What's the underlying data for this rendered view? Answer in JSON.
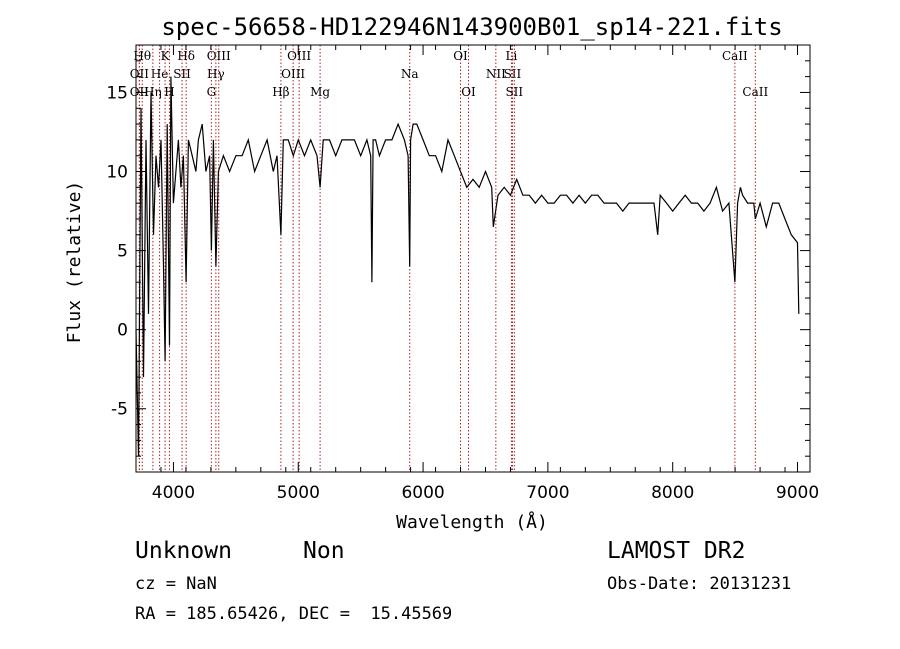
{
  "chart_data": {
    "type": "line",
    "title": "spec-56658-HD122946N143900B01_sp14-221.fits",
    "xlabel": "Wavelength (Å)",
    "ylabel": "Flux (relative)",
    "xlim": [
      3700,
      9100
    ],
    "ylim": [
      -9,
      18
    ],
    "xticks": [
      4000,
      5000,
      6000,
      7000,
      8000,
      9000
    ],
    "yticks": [
      -5,
      0,
      5,
      10,
      15
    ],
    "series": [
      {
        "x": [
          3700,
          3720,
          3740,
          3760,
          3780,
          3800,
          3820,
          3840,
          3860,
          3880,
          3900,
          3920,
          3933,
          3950,
          3968,
          3980,
          4000,
          4020,
          4040,
          4060,
          4080,
          4101,
          4120,
          4150,
          4180,
          4200,
          4230,
          4260,
          4290,
          4304,
          4320,
          4340,
          4360,
          4400,
          4450,
          4500,
          4550,
          4600,
          4650,
          4700,
          4750,
          4800,
          4830,
          4861,
          4880,
          4920,
          4960,
          5000,
          5050,
          5100,
          5150,
          5175,
          5200,
          5250,
          5300,
          5350,
          5400,
          5450,
          5500,
          5550,
          5580,
          5590,
          5600,
          5620,
          5650,
          5700,
          5750,
          5800,
          5850,
          5880,
          5893,
          5900,
          5920,
          5950,
          6000,
          6050,
          6100,
          6150,
          6200,
          6250,
          6300,
          6350,
          6400,
          6450,
          6500,
          6550,
          6563,
          6600,
          6650,
          6700,
          6750,
          6800,
          6850,
          6900,
          6950,
          7000,
          7050,
          7100,
          7150,
          7200,
          7250,
          7300,
          7350,
          7400,
          7450,
          7500,
          7550,
          7600,
          7650,
          7700,
          7750,
          7800,
          7850,
          7880,
          7900,
          7950,
          8000,
          8050,
          8100,
          8150,
          8200,
          8250,
          8300,
          8350,
          8400,
          8450,
          8498,
          8520,
          8542,
          8560,
          8600,
          8650,
          8662,
          8700,
          8750,
          8800,
          8850,
          8900,
          8950,
          9000,
          9010
        ],
        "y": [
          0,
          -8,
          14,
          -3,
          12,
          1,
          15,
          6,
          11,
          9,
          12,
          4,
          -2,
          13,
          -1,
          16,
          8,
          10,
          12,
          9,
          11,
          3,
          12,
          11,
          10,
          12,
          13,
          10,
          11,
          5,
          12,
          4,
          10,
          11,
          10,
          11,
          11,
          12,
          10,
          11,
          12,
          10,
          11,
          6,
          12,
          12,
          11,
          12,
          11,
          12,
          11,
          9,
          12,
          12,
          11,
          12,
          12,
          12,
          11,
          12,
          11,
          3,
          12,
          12,
          11,
          12,
          12,
          13,
          12,
          11,
          4,
          12,
          13,
          13,
          12,
          11,
          11,
          10,
          12,
          11,
          10,
          9,
          9.5,
          9,
          10,
          9,
          6.5,
          8.5,
          9,
          8.5,
          9.5,
          8.5,
          8.5,
          8,
          8.5,
          8,
          8,
          8.5,
          8.5,
          8,
          8.5,
          8,
          8.5,
          8.5,
          8,
          8,
          8,
          7.5,
          8,
          8,
          8,
          8,
          8,
          6,
          8.5,
          8,
          7.5,
          8,
          8.5,
          8,
          8,
          7.5,
          8,
          9,
          7.5,
          8,
          3,
          8,
          9,
          8.5,
          8,
          8,
          7,
          8,
          6.5,
          8,
          8,
          7,
          6,
          5.5,
          1
        ]
      }
    ],
    "line_markers": [
      {
        "label": "Hθ",
        "x": 3750,
        "row": 1
      },
      {
        "label": "K",
        "x": 3933,
        "row": 1
      },
      {
        "label": "Hδ",
        "x": 4102,
        "row": 1
      },
      {
        "label": "OIII",
        "x": 4363,
        "row": 1
      },
      {
        "label": "OIII",
        "x": 5007,
        "row": 1
      },
      {
        "label": "OI",
        "x": 6300,
        "row": 1
      },
      {
        "label": "Li",
        "x": 6708,
        "row": 1
      },
      {
        "label": "CaII",
        "x": 8498,
        "row": 1
      },
      {
        "label": "OII",
        "x": 3727,
        "row": 2
      },
      {
        "label": "He",
        "x": 3889,
        "row": 2
      },
      {
        "label": "SII",
        "x": 4069,
        "row": 2
      },
      {
        "label": "Hγ",
        "x": 4340,
        "row": 2
      },
      {
        "label": "OIII",
        "x": 4959,
        "row": 2
      },
      {
        "label": "Na",
        "x": 5893,
        "row": 2
      },
      {
        "label": "NII",
        "x": 6583,
        "row": 2
      },
      {
        "label": "SII",
        "x": 6716,
        "row": 2
      },
      {
        "label": "OII",
        "x": 3727,
        "row": 3
      },
      {
        "label": "Hη",
        "x": 3835,
        "row": 3
      },
      {
        "label": "H",
        "x": 3968,
        "row": 3
      },
      {
        "label": "G",
        "x": 4304,
        "row": 3
      },
      {
        "label": "Hβ",
        "x": 4861,
        "row": 3
      },
      {
        "label": "Mg",
        "x": 5175,
        "row": 3
      },
      {
        "label": "OI",
        "x": 6364,
        "row": 3
      },
      {
        "label": "SII",
        "x": 6731,
        "row": 3
      },
      {
        "label": "CaII",
        "x": 8662,
        "row": 3
      }
    ],
    "marker_color": "#b22222",
    "grid": false
  },
  "info": {
    "class": "Unknown",
    "subclass": "Non",
    "survey": "LAMOST DR2",
    "cz": "cz = NaN",
    "obs_date": "Obs-Date: 20131231",
    "radec": "RA = 185.65426, DEC =  15.45569"
  }
}
